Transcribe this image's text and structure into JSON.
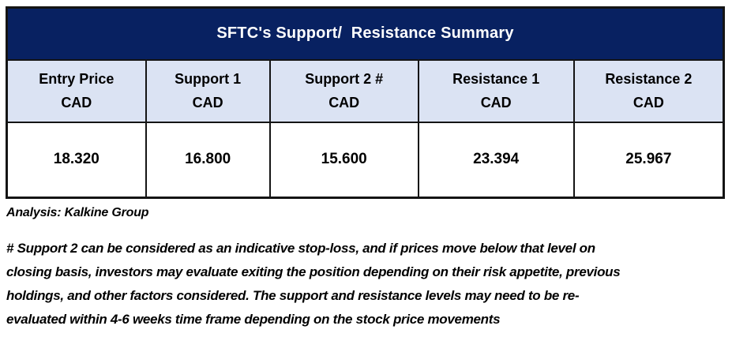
{
  "title": "SFTC's Support/  Resistance Summary",
  "table": {
    "columns": [
      {
        "label": "Entry Price",
        "unit": "CAD"
      },
      {
        "label": "Support 1",
        "unit": "CAD"
      },
      {
        "label": "Support 2 #",
        "unit": "CAD"
      },
      {
        "label": "Resistance 1",
        "unit": "CAD"
      },
      {
        "label": "Resistance 2",
        "unit": "CAD"
      }
    ],
    "values": [
      "18.320",
      "16.800",
      "15.600",
      "23.394",
      "25.967"
    ]
  },
  "analysis_credit": "Analysis: Kalkine Group",
  "note_lines": [
    "# Support 2 can be considered as an indicative stop-loss, and if prices move below that level on",
    "closing basis, investors may evaluate exiting the position depending on their risk appetite, previous",
    "holdings, and other factors considered. The support and resistance levels may need to be re-",
    "evaluated within 4-6 weeks time frame depending on the stock price movements"
  ],
  "colors": {
    "title_bg": "#082161",
    "title_text": "#ffffff",
    "header_bg": "#dbe3f3",
    "border": "#141414",
    "body_text": "#000000"
  },
  "chart_data": {
    "type": "table",
    "title": "SFTC's Support/  Resistance Summary",
    "columns": [
      "Entry Price CAD",
      "Support 1 CAD",
      "Support 2 # CAD",
      "Resistance 1 CAD",
      "Resistance 2 CAD"
    ],
    "rows": [
      [
        18.32,
        16.8,
        15.6,
        23.394,
        25.967
      ]
    ],
    "currency": "CAD",
    "source": "Analysis: Kalkine Group",
    "footnote": "# Support 2 can be considered as an indicative stop-loss, and if prices move below that level on closing basis, investors may evaluate exiting the position depending on their risk appetite, previous holdings, and other factors considered. The support and resistance levels may need to be re-evaluated within 4-6 weeks time frame depending on the stock price movements"
  }
}
